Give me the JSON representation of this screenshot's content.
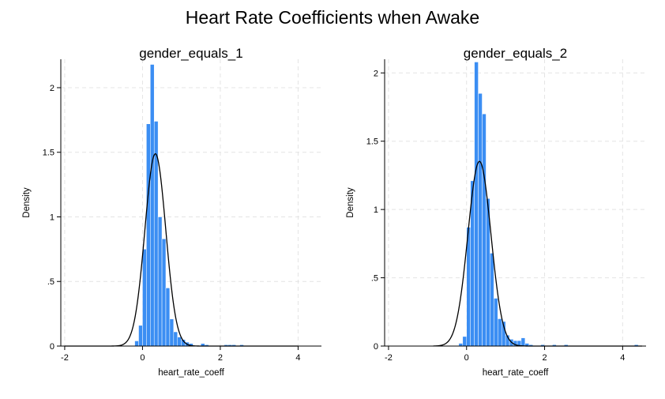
{
  "title": "Heart Rate Coefficients when Awake",
  "colors": {
    "bar": "#3b8ef3",
    "bar_edge": "#ffffff",
    "density": "#000000",
    "grid": "#e4e4e4",
    "axis": "#000000"
  },
  "chart_data": [
    {
      "type": "histogram",
      "title": "gender_equals_1",
      "xlabel": "heart_rate_coeff",
      "ylabel": "Density",
      "xlim": [
        -2.1,
        4.6
      ],
      "ylim": [
        0,
        2.22
      ],
      "xticks": [
        -2,
        0,
        2,
        4
      ],
      "xtick_labels": [
        "-2",
        "0",
        "2",
        "4"
      ],
      "yticks": [
        0,
        0.5,
        1,
        1.5,
        2
      ],
      "ytick_labels": [
        "0",
        ".5",
        "1",
        "1.5",
        "2"
      ],
      "grid": true,
      "bin_width": 0.1,
      "bins": [
        {
          "x0": -0.2,
          "density": 0.04
        },
        {
          "x0": -0.1,
          "density": 0.16
        },
        {
          "x0": 0.0,
          "density": 0.75
        },
        {
          "x0": 0.1,
          "density": 1.72
        },
        {
          "x0": 0.2,
          "density": 2.18
        },
        {
          "x0": 0.3,
          "density": 1.74
        },
        {
          "x0": 0.4,
          "density": 1.0
        },
        {
          "x0": 0.5,
          "density": 0.83
        },
        {
          "x0": 0.6,
          "density": 0.45
        },
        {
          "x0": 0.7,
          "density": 0.21
        },
        {
          "x0": 0.8,
          "density": 0.11
        },
        {
          "x0": 0.9,
          "density": 0.07
        },
        {
          "x0": 1.0,
          "density": 0.05
        },
        {
          "x0": 1.1,
          "density": 0.03
        },
        {
          "x0": 1.2,
          "density": 0.02
        },
        {
          "x0": 1.5,
          "density": 0.02
        },
        {
          "x0": 1.6,
          "density": 0.01
        },
        {
          "x0": 2.1,
          "density": 0.01
        },
        {
          "x0": 2.2,
          "density": 0.01
        },
        {
          "x0": 2.3,
          "density": 0.01
        },
        {
          "x0": 2.5,
          "density": 0.01
        }
      ],
      "normal_curve": {
        "mean": 0.33,
        "sd": 0.268,
        "range": [
          -2.0,
          4.0
        ]
      }
    },
    {
      "type": "histogram",
      "title": "gender_equals_2",
      "xlabel": "heart_rate_coeff",
      "ylabel": "Density",
      "xlim": [
        -2.1,
        4.6
      ],
      "ylim": [
        0,
        2.1
      ],
      "xticks": [
        -2,
        0,
        2,
        4
      ],
      "xtick_labels": [
        "-2",
        "0",
        "2",
        "4"
      ],
      "yticks": [
        0,
        0.5,
        1,
        1.5,
        2
      ],
      "ytick_labels": [
        "0",
        ".5",
        "1",
        "1.5",
        "2"
      ],
      "grid": true,
      "bin_width": 0.1,
      "bins": [
        {
          "x0": -0.2,
          "density": 0.02
        },
        {
          "x0": -0.1,
          "density": 0.07
        },
        {
          "x0": 0.0,
          "density": 0.87
        },
        {
          "x0": 0.1,
          "density": 1.21
        },
        {
          "x0": 0.2,
          "density": 2.08
        },
        {
          "x0": 0.3,
          "density": 1.85
        },
        {
          "x0": 0.4,
          "density": 1.7
        },
        {
          "x0": 0.5,
          "density": 1.08
        },
        {
          "x0": 0.6,
          "density": 0.68
        },
        {
          "x0": 0.7,
          "density": 0.35
        },
        {
          "x0": 0.8,
          "density": 0.2
        },
        {
          "x0": 0.9,
          "density": 0.18
        },
        {
          "x0": 1.0,
          "density": 0.08
        },
        {
          "x0": 1.1,
          "density": 0.05
        },
        {
          "x0": 1.2,
          "density": 0.04
        },
        {
          "x0": 1.3,
          "density": 0.04
        },
        {
          "x0": 1.4,
          "density": 0.06
        },
        {
          "x0": 1.5,
          "density": 0.02
        },
        {
          "x0": 1.6,
          "density": 0.01
        },
        {
          "x0": 1.9,
          "density": 0.01
        },
        {
          "x0": 2.2,
          "density": 0.01
        },
        {
          "x0": 2.5,
          "density": 0.01
        },
        {
          "x0": 4.3,
          "density": 0.01
        }
      ],
      "normal_curve": {
        "mean": 0.33,
        "sd": 0.295,
        "range": [
          -0.85,
          4.5
        ]
      }
    }
  ]
}
